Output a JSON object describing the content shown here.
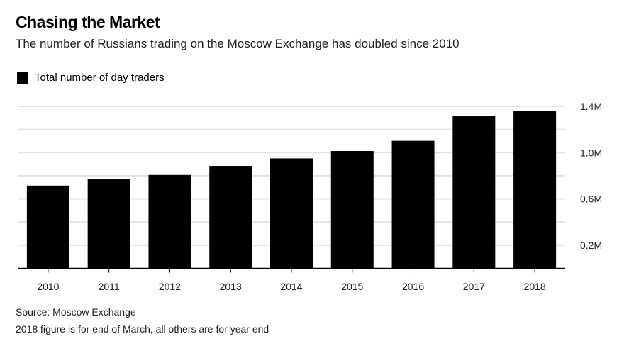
{
  "chart_data": {
    "type": "bar",
    "title": "Chasing the Market",
    "subtitle": "The number of Russians trading on the Moscow Exchange has doubled since 2010",
    "legend": {
      "entries": [
        "Total number of day traders"
      ],
      "placement": "top-left"
    },
    "categories": [
      "2010",
      "2011",
      "2012",
      "2013",
      "2014",
      "2015",
      "2016",
      "2017",
      "2018"
    ],
    "series": [
      {
        "name": "Total number of day traders",
        "values": [
          0.715,
          0.773,
          0.807,
          0.885,
          0.95,
          1.014,
          1.102,
          1.314,
          1.363
        ],
        "color": "#000000"
      }
    ],
    "unit": "M",
    "ylim": [
      0,
      1.4
    ],
    "yticks": [
      0.2,
      0.6,
      1.0,
      1.4
    ],
    "ytick_labels": [
      "0.2M",
      "0.6M",
      "1.0M",
      "1.4M"
    ],
    "gridlines": [
      0.2,
      0.4,
      0.6,
      0.8,
      1.0,
      1.2,
      1.4
    ],
    "grid": true,
    "y_axis_side": "right",
    "source": "Source: Moscow Exchange",
    "note": "2018 figure is for end of March, all others are for year end"
  }
}
